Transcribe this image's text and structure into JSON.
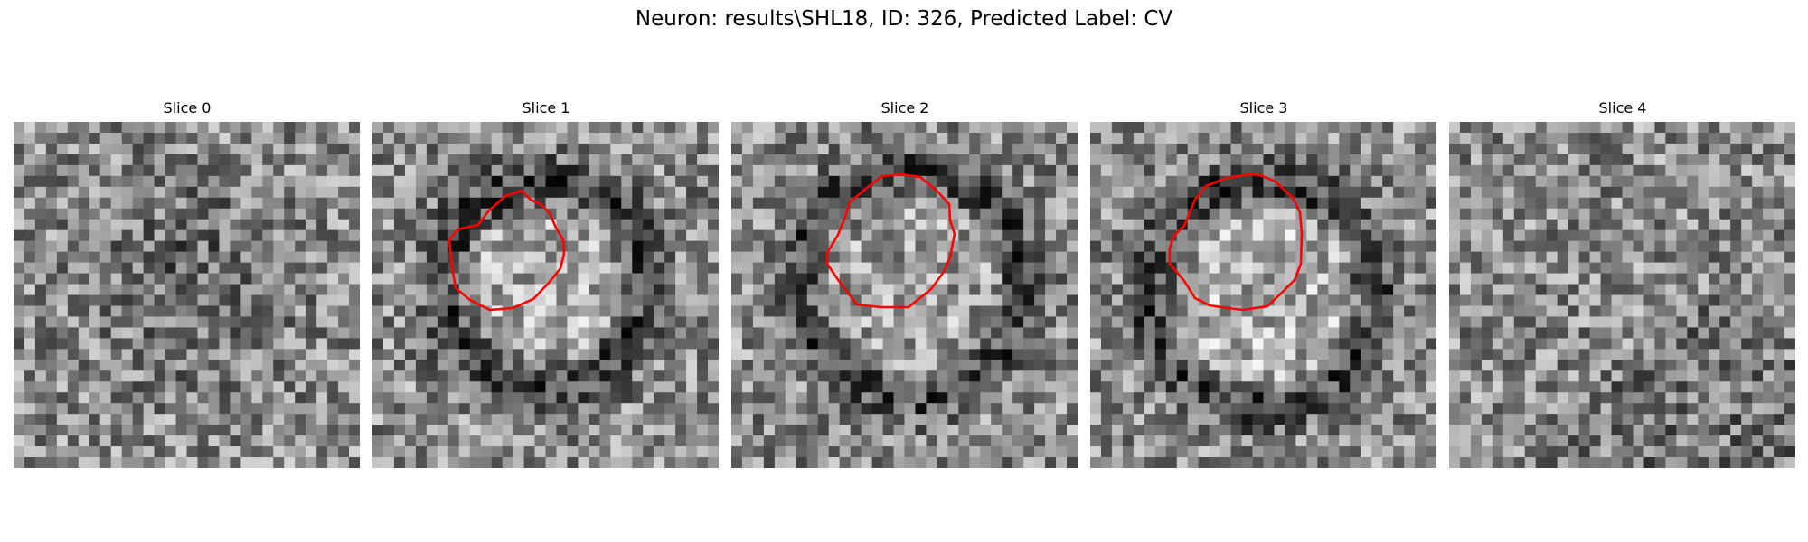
{
  "figure": {
    "title": "Neuron: results\\SHL18, ID: 326, Predicted Label: CV",
    "contour_color": "#ff0000",
    "colormap": "grayscale",
    "panels": [
      {
        "title": "Slice 0",
        "has_contour": false
      },
      {
        "title": "Slice 1",
        "has_contour": true
      },
      {
        "title": "Slice 2",
        "has_contour": true
      },
      {
        "title": "Slice 3",
        "has_contour": true
      },
      {
        "title": "Slice 4",
        "has_contour": false
      }
    ]
  }
}
